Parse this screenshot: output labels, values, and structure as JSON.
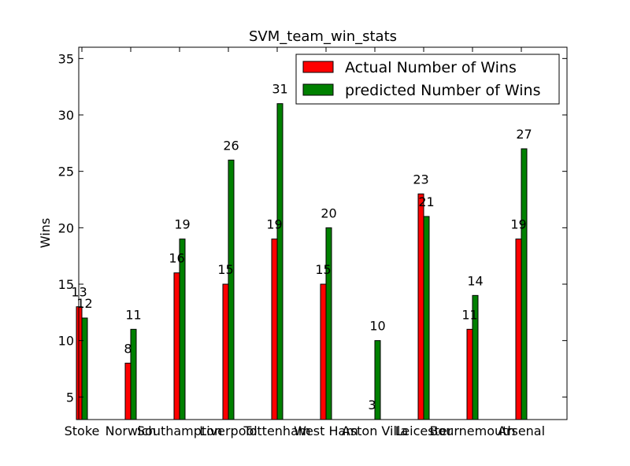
{
  "chart_data": {
    "type": "bar",
    "title": "SVM_team_win_stats",
    "xlabel": "",
    "ylabel": "Wins",
    "ylim": [
      3,
      36
    ],
    "yticks": [
      5,
      10,
      15,
      20,
      25,
      30,
      35
    ],
    "categories": [
      "Stoke",
      "Norwich",
      "Southampton",
      "Liverpool",
      "Tottenham",
      "West Ham",
      "Aston Villa",
      "Leicester",
      "Bournemouth",
      "Arsenal"
    ],
    "series": [
      {
        "name": "Actual Number of Wins",
        "color": "#ff0000",
        "values": [
          13,
          8,
          16,
          15,
          19,
          15,
          3,
          23,
          11,
          19
        ]
      },
      {
        "name": "predicted Number of Wins",
        "color": "#008000",
        "values": [
          12,
          11,
          19,
          26,
          31,
          20,
          10,
          21,
          14,
          27
        ]
      }
    ],
    "legend_position": "top-right",
    "grid": false
  }
}
